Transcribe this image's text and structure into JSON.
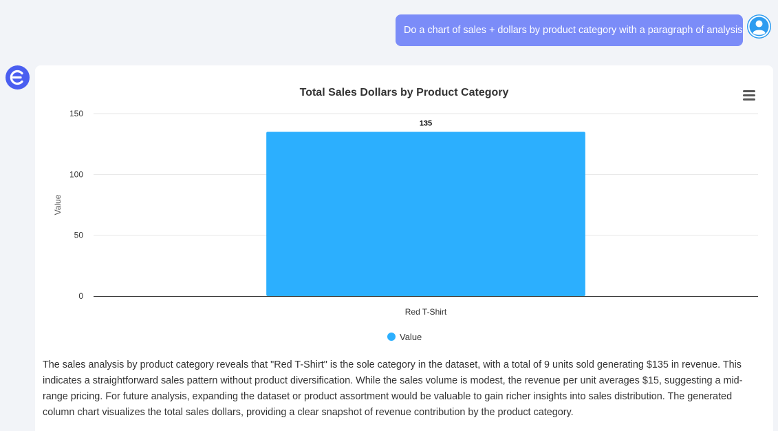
{
  "chat": {
    "user_message": "Do a chart of sales + dollars by product category with a paragraph of analysis.",
    "analysis": "The sales analysis by product category reveals that \"Red T-Shirt\" is the sole category in the dataset, with a total of 9 units sold generating $135 in revenue. This indicates a straightforward sales pattern without product diversification. While the sales volume is modest, the revenue per unit averages $15, suggesting a mid-range pricing. For future analysis, expanding the dataset or product assortment would be valuable to gain richer insights into sales distribution. The generated column chart visualizes the total sales dollars, providing a clear snapshot of revenue contribution by the product category."
  },
  "icons": {
    "user_avatar": "user-icon",
    "bot_avatar": "e-logo-icon",
    "chart_menu": "hamburger-menu-icon"
  },
  "colors": {
    "user_bubble": "#7b8cf8",
    "bar": "#2caffe",
    "bot_avatar": "#4a5ef0",
    "user_avatar": "#2e9cf0"
  },
  "chart_data": {
    "type": "bar",
    "title": "Total Sales Dollars by Product Category",
    "categories": [
      "Red T-Shirt"
    ],
    "series": [
      {
        "name": "Value",
        "values": [
          135
        ]
      }
    ],
    "xlabel": "",
    "ylabel": "Value",
    "ylim": [
      0,
      150
    ],
    "yticks": [
      0,
      50,
      100,
      150
    ],
    "data_labels": true,
    "grid": true,
    "legend": "bottom-center"
  }
}
